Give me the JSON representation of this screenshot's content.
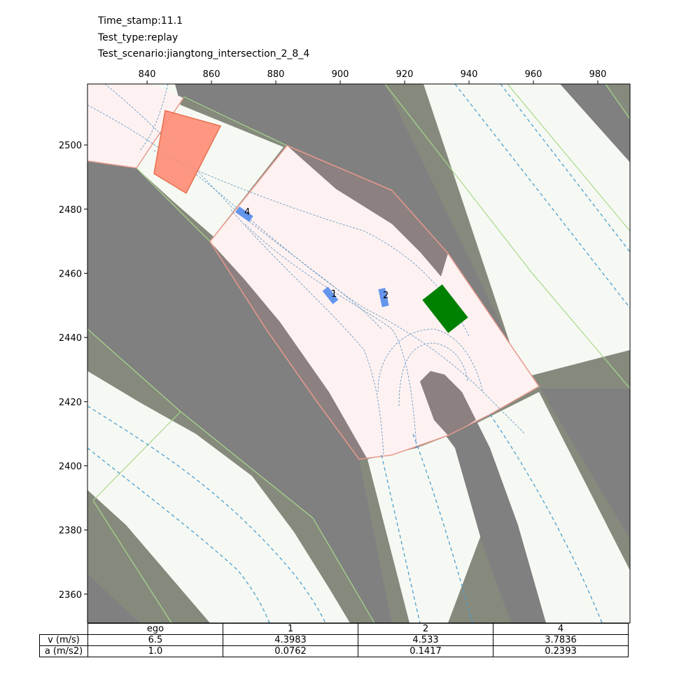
{
  "header": {
    "time_stamp": "Time_stamp:11.1",
    "test_type": "Test_type:replay",
    "test_scenario": "Test_scenario:jiangtong_intersection_2_8_4"
  },
  "map": {
    "x_ticks": [
      840,
      860,
      880,
      900,
      920,
      940,
      960,
      980
    ],
    "y_ticks": [
      2500,
      2480,
      2460,
      2440,
      2420,
      2400,
      2380,
      2360
    ],
    "xlim": [
      821.5,
      990
    ],
    "ylim": [
      2351,
      2519
    ],
    "colors": {
      "background": "#808080",
      "road": "#f6f9f3",
      "shoulder": "#858a7d",
      "junction": "#fdf2f1",
      "junction_boundary": "#e8998c",
      "lane_boundary": "#a8d88a",
      "centerline": "#4e9fd0",
      "ego": "#008000",
      "agent": "#6495ed",
      "crosswalk": "#ff8c75"
    },
    "vehicles": [
      {
        "id": "1",
        "label": "1",
        "x": 896.5,
        "y": 2453.5
      },
      {
        "id": "2",
        "label": "2",
        "x": 912.0,
        "y": 2453.0
      },
      {
        "id": "4",
        "label": "4",
        "x": 871.0,
        "y": 2479.0
      }
    ],
    "ego": {
      "x": 931.0,
      "y": 2447.0
    }
  },
  "table": {
    "headers": [
      "ego",
      "1",
      "2",
      "4"
    ],
    "rows": [
      {
        "label": "v (m/s)",
        "values": [
          "6.5",
          "4.3983",
          "4.533",
          "3.7836"
        ]
      },
      {
        "label": "a (m/s2)",
        "values": [
          "1.0",
          "0.0762",
          "0.1417",
          "0.2393"
        ]
      }
    ]
  }
}
